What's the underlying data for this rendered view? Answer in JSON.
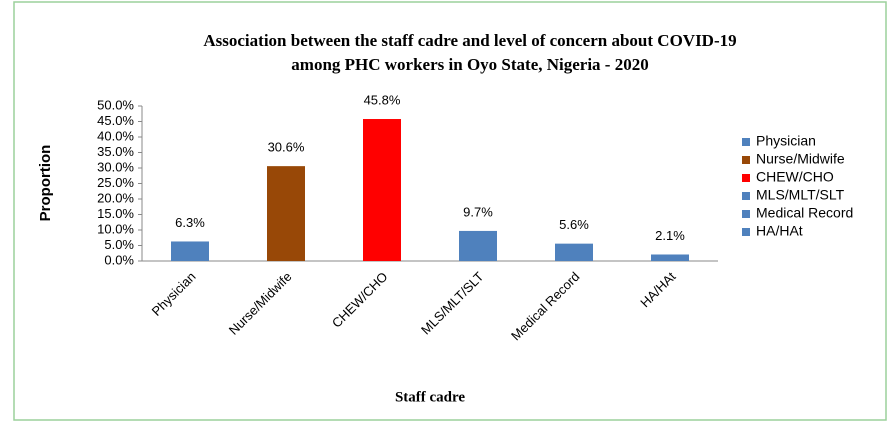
{
  "chart_data": {
    "type": "bar",
    "title": [
      "Association between the staff cadre and level of concern about COVID-19",
      "among PHC workers in Oyo State, Nigeria - 2020"
    ],
    "x_label": "Staff cadre",
    "y_label": "Proportion",
    "categories": [
      "Physician",
      "Nurse/Midwife",
      "CHEW/CHO",
      "MLS/MLT/SLT",
      "Medical Record",
      "HA/HAt"
    ],
    "values": [
      6.3,
      30.6,
      45.8,
      9.7,
      5.6,
      2.1
    ],
    "value_labels": [
      "6.3%",
      "30.6%",
      "45.8%",
      "9.7%",
      "5.6%",
      "2.1%"
    ],
    "colors": [
      "#4f81bd",
      "#984807",
      "#ff0000",
      "#4f81bd",
      "#4f81bd",
      "#4f81bd"
    ],
    "ylim": [
      0,
      50
    ],
    "yticks": [
      {
        "value": 0,
        "label": "0.0%"
      },
      {
        "value": 5,
        "label": "5.0%"
      },
      {
        "value": 10,
        "label": "10.0%"
      },
      {
        "value": 15,
        "label": "15.0%"
      },
      {
        "value": 20,
        "label": "20.0%"
      },
      {
        "value": 25,
        "label": "25.0%"
      },
      {
        "value": 30,
        "label": "30.0%"
      },
      {
        "value": 35,
        "label": "35.0%"
      },
      {
        "value": 40,
        "label": "40.0%"
      },
      {
        "value": 45,
        "label": "45.0%"
      },
      {
        "value": 50,
        "label": "50.0%"
      }
    ],
    "grid": false,
    "legend": "right"
  }
}
